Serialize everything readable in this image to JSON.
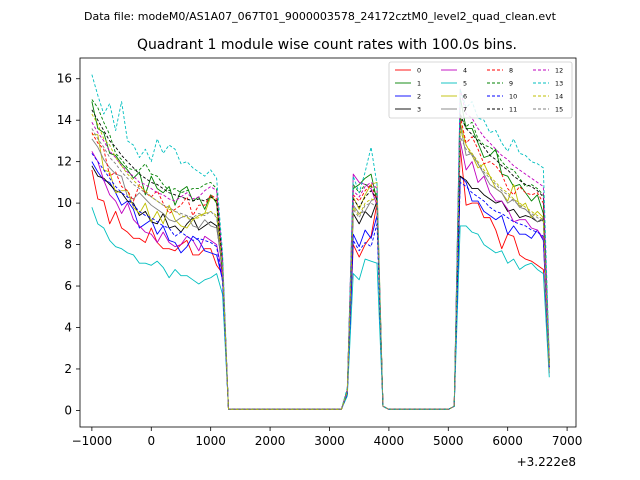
{
  "figure": {
    "suptitle": "Data file: modeM0/AS1A07_067T01_9000003578_24172cztM0_level2_quad_clean.evt",
    "title": "Quadrant 1 module wise count rates with 100.0s bins.",
    "x_offset_label": "+3.222e8"
  },
  "chart_data": {
    "type": "line",
    "title": "Quadrant 1 module wise count rates with 100.0s bins.",
    "xlabel": "",
    "ylabel": "",
    "x_offset": "+3.222e8",
    "xlim": [
      -1200,
      7150
    ],
    "ylim": [
      -0.8,
      17.0
    ],
    "xticks": [
      -1000,
      0,
      1000,
      2000,
      3000,
      4000,
      5000,
      6000,
      7000
    ],
    "xtick_labels": [
      "−1000",
      "0",
      "1000",
      "2000",
      "3000",
      "4000",
      "5000",
      "6000",
      "7000"
    ],
    "yticks": [
      0,
      2,
      4,
      6,
      8,
      10,
      12,
      14,
      16
    ],
    "ytick_labels": [
      "0",
      "2",
      "4",
      "6",
      "8",
      "10",
      "12",
      "14",
      "16"
    ],
    "grid": false,
    "legend_position": "top-right",
    "legend_columns": 4,
    "segments": [
      {
        "start": -1000,
        "count": 22
      },
      {
        "start": 1200,
        "count": 1
      },
      {
        "start": 1300,
        "count": 20
      },
      {
        "start": 3300,
        "count": 6
      },
      {
        "start": 3900,
        "count": 12
      },
      {
        "start": 5100,
        "count": 1
      },
      {
        "start": 5200,
        "count": 16
      }
    ],
    "series": [
      {
        "name": "0",
        "color": "#ff0000",
        "dash": "solid",
        "active1": [
          11.6,
          10.2,
          10.1,
          9.0,
          9.6,
          8.8,
          8.6,
          8.3,
          8.3,
          8.1,
          8.8,
          8.1,
          7.8,
          7.8,
          7.7,
          8.0,
          8.2,
          7.5,
          7.5,
          7.8,
          7.8,
          7.0,
          6.6
        ],
        "active2": [
          0.9,
          8.0,
          7.4,
          8.0,
          8.4,
          10.0,
          0.2
        ],
        "active3": [
          0.2,
          12.7,
          9.9,
          10.0,
          10.0,
          9.3,
          9.3,
          8.7,
          7.8,
          8.5,
          8.4,
          7.5,
          7.3,
          7.2,
          7.0,
          6.8,
          1.8
        ]
      },
      {
        "name": "1",
        "color": "#008000",
        "dash": "solid",
        "active1": [
          14.9,
          13.6,
          13.4,
          12.4,
          12.3,
          11.9,
          11.6,
          11.2,
          11.5,
          10.4,
          11.3,
          10.7,
          10.5,
          10.8,
          9.9,
          10.6,
          10.8,
          10.1,
          10.3,
          9.7,
          10.4,
          10.0,
          6.4
        ],
        "active2": [
          1.0,
          10.7,
          10.9,
          11.2,
          11.4,
          10.1,
          0.2
        ],
        "active3": [
          0.2,
          15.1,
          13.6,
          13.6,
          12.9,
          12.2,
          12.3,
          12.6,
          11.4,
          11.3,
          10.8,
          10.9,
          10.5,
          10.1,
          10.4,
          9.5,
          2.2
        ]
      },
      {
        "name": "2",
        "color": "#0000ff",
        "dash": "solid",
        "active1": [
          12.0,
          11.5,
          11.1,
          11.0,
          10.5,
          9.9,
          10.1,
          9.7,
          8.8,
          9.0,
          9.2,
          8.5,
          8.9,
          8.2,
          8.1,
          7.6,
          7.9,
          8.4,
          8.2,
          7.7,
          7.6,
          7.5,
          6.3
        ],
        "active2": [
          0.8,
          8.5,
          7.9,
          8.7,
          8.3,
          9.4,
          0.2
        ],
        "active3": [
          0.2,
          11.3,
          11.0,
          10.1,
          10.1,
          9.6,
          9.4,
          9.2,
          9.4,
          8.5,
          8.9,
          8.5,
          8.5,
          8.3,
          8.7,
          8.2,
          2.0
        ]
      },
      {
        "name": "3",
        "color": "#000000",
        "dash": "solid",
        "active1": [
          11.8,
          11.3,
          11.2,
          10.9,
          10.6,
          10.5,
          10.1,
          10.0,
          9.4,
          9.6,
          9.1,
          9.0,
          9.5,
          8.8,
          8.9,
          8.6,
          9.0,
          9.3,
          8.7,
          8.9,
          9.1,
          8.9,
          6.8
        ],
        "active2": [
          0.9,
          9.5,
          9.0,
          9.6,
          9.3,
          10.1,
          0.2
        ],
        "active3": [
          0.2,
          11.3,
          11.1,
          10.7,
          10.7,
          10.4,
          10.2,
          10.0,
          10.1,
          9.6,
          9.7,
          9.3,
          9.4,
          9.3,
          9.1,
          9.2,
          2.3
        ]
      },
      {
        "name": "4",
        "color": "#bf00bf",
        "dash": "solid",
        "active1": [
          12.5,
          12.0,
          11.1,
          10.4,
          10.1,
          9.5,
          10.0,
          9.2,
          8.9,
          8.6,
          8.5,
          8.1,
          8.6,
          8.1,
          7.9,
          8.0,
          8.4,
          8.2,
          7.7,
          8.4,
          8.2,
          8.0,
          6.5
        ],
        "active2": [
          0.9,
          11.4,
          11.0,
          10.9,
          10.7,
          9.9,
          0.2
        ],
        "active3": [
          0.2,
          13.0,
          11.6,
          12.0,
          11.0,
          11.3,
          10.5,
          10.1,
          10.1,
          9.7,
          9.1,
          9.2,
          9.2,
          8.8,
          8.7,
          8.3,
          2.1
        ]
      },
      {
        "name": "5",
        "color": "#00bfbf",
        "dash": "solid",
        "active1": [
          9.8,
          9.0,
          8.8,
          8.2,
          7.9,
          7.8,
          7.6,
          7.5,
          7.1,
          7.1,
          7.0,
          7.2,
          6.9,
          6.4,
          6.8,
          6.5,
          6.5,
          6.3,
          6.1,
          6.3,
          6.4,
          6.6,
          5.6
        ],
        "active2": [
          0.7,
          6.6,
          6.3,
          7.3,
          7.2,
          7.1,
          0.2
        ],
        "active3": [
          0.2,
          8.9,
          8.9,
          8.6,
          8.5,
          8.0,
          7.8,
          7.6,
          7.7,
          7.1,
          7.3,
          6.8,
          7.0,
          7.1,
          6.8,
          6.6,
          1.6
        ]
      },
      {
        "name": "6",
        "color": "#bfbf00",
        "dash": "solid",
        "active1": [
          13.3,
          13.3,
          11.6,
          11.5,
          10.5,
          10.6,
          10.6,
          9.8,
          9.5,
          10.0,
          9.1,
          9.6,
          9.0,
          9.9,
          9.2,
          8.9,
          8.8,
          9.2,
          9.4,
          9.5,
          10.3,
          10.1,
          6.9
        ],
        "active2": [
          0.9,
          10.3,
          9.7,
          10.4,
          10.9,
          11.0,
          0.2
        ],
        "active3": [
          0.2,
          13.9,
          12.8,
          12.3,
          11.7,
          11.9,
          11.3,
          10.7,
          10.5,
          10.1,
          10.9,
          9.8,
          10.0,
          9.3,
          9.6,
          9.3,
          2.0
        ]
      },
      {
        "name": "7",
        "color": "#808080",
        "dash": "solid",
        "active1": [
          13.1,
          12.7,
          12.1,
          11.7,
          11.4,
          11.3,
          10.3,
          10.2,
          10.5,
          10.2,
          9.9,
          9.7,
          9.5,
          9.2,
          9.1,
          9.3,
          9.4,
          8.9,
          8.8,
          9.2,
          8.9,
          8.8,
          7.0
        ],
        "active2": [
          0.9,
          9.9,
          9.5,
          9.6,
          10.1,
          10.3,
          0.2
        ],
        "active3": [
          0.2,
          13.8,
          12.3,
          12.4,
          11.9,
          11.4,
          10.9,
          10.7,
          10.5,
          10.0,
          10.2,
          9.8,
          9.7,
          9.4,
          9.1,
          9.3,
          2.1
        ]
      },
      {
        "name": "8",
        "color": "#ff0000",
        "dash": "dashed",
        "active1": [
          13.4,
          12.9,
          12.6,
          11.3,
          11.5,
          10.8,
          10.6,
          10.1,
          10.9,
          10.5,
          10.3,
          10.6,
          10.0,
          9.5,
          9.7,
          9.9,
          10.3,
          9.4,
          9.9,
          9.9,
          10.4,
          10.2,
          7.0
        ],
        "active2": [
          0.9,
          10.4,
          10.1,
          10.6,
          10.9,
          10.1,
          0.2
        ],
        "active3": [
          0.2,
          14.2,
          12.9,
          13.2,
          12.6,
          11.9,
          12.0,
          11.8,
          11.4,
          10.7,
          10.4,
          10.8,
          10.5,
          10.4,
          10.5,
          10.0,
          2.3
        ]
      },
      {
        "name": "9",
        "color": "#008000",
        "dash": "dashed",
        "active1": [
          15.0,
          14.6,
          13.9,
          13.3,
          12.4,
          12.1,
          11.7,
          11.6,
          11.6,
          11.9,
          11.4,
          11.3,
          10.9,
          10.6,
          10.7,
          10.5,
          10.6,
          10.7,
          10.7,
          10.9,
          11.0,
          10.7,
          7.3
        ],
        "active2": [
          1.0,
          10.9,
          10.5,
          10.9,
          10.8,
          10.4,
          0.2
        ],
        "active3": [
          0.2,
          14.1,
          13.7,
          13.9,
          13.1,
          12.8,
          12.7,
          12.5,
          12.0,
          11.7,
          11.6,
          11.2,
          10.8,
          10.9,
          10.7,
          10.4,
          2.4
        ]
      },
      {
        "name": "10",
        "color": "#0000ff",
        "dash": "dashed",
        "active1": [
          12.4,
          12.0,
          11.6,
          11.2,
          10.8,
          10.5,
          10.3,
          9.9,
          9.6,
          9.4,
          9.3,
          9.1,
          8.9,
          8.8,
          8.4,
          8.6,
          8.4,
          8.2,
          8.3,
          8.2,
          8.1,
          7.9,
          6.2
        ],
        "active2": [
          0.8,
          8.2,
          7.7,
          8.1,
          7.9,
          9.0,
          0.2
        ],
        "active3": [
          0.2,
          11.0,
          10.8,
          10.5,
          10.3,
          10.1,
          9.8,
          9.6,
          9.5,
          9.3,
          9.1,
          9.0,
          8.9,
          8.7,
          8.6,
          8.4,
          2.0
        ]
      },
      {
        "name": "11",
        "color": "#000000",
        "dash": "dashed",
        "active1": [
          14.5,
          14.0,
          13.5,
          13.0,
          12.7,
          12.3,
          12.0,
          11.7,
          11.4,
          11.2,
          11.0,
          10.9,
          10.7,
          10.5,
          10.4,
          10.3,
          10.2,
          10.1,
          10.2,
          10.1,
          10.3,
          10.1,
          7.0
        ],
        "active2": [
          0.9,
          10.2,
          9.8,
          10.3,
          10.6,
          10.2,
          0.2
        ],
        "active3": [
          0.2,
          14.3,
          13.6,
          13.3,
          13.0,
          12.7,
          12.3,
          12.1,
          11.8,
          11.6,
          11.3,
          11.1,
          10.9,
          10.8,
          10.6,
          10.3,
          2.3
        ]
      },
      {
        "name": "12",
        "color": "#bf00bf",
        "dash": "dashed",
        "active1": [
          13.9,
          13.4,
          13.0,
          12.5,
          12.2,
          11.8,
          11.5,
          11.3,
          11.0,
          10.9,
          10.7,
          10.5,
          10.4,
          10.2,
          10.1,
          10.3,
          10.5,
          10.2,
          10.3,
          10.6,
          10.8,
          10.6,
          7.3
        ],
        "active2": [
          1.0,
          10.6,
          10.3,
          10.8,
          11.0,
          10.7,
          0.2
        ],
        "active3": [
          0.2,
          15.5,
          14.3,
          14.1,
          13.6,
          13.2,
          12.9,
          12.6,
          12.3,
          12.1,
          11.8,
          11.6,
          11.4,
          11.2,
          11.0,
          10.8,
          2.5
        ]
      },
      {
        "name": "13",
        "color": "#00bfbf",
        "dash": "dashed",
        "active1": [
          16.2,
          15.2,
          14.3,
          14.8,
          13.5,
          14.9,
          13.0,
          12.8,
          12.2,
          12.6,
          12.0,
          13.1,
          12.4,
          12.8,
          12.6,
          11.9,
          12.0,
          11.7,
          11.5,
          11.3,
          11.6,
          11.2,
          7.6
        ],
        "active2": [
          1.1,
          11.3,
          10.5,
          11.5,
          12.7,
          10.9,
          0.2
        ],
        "active3": [
          0.2,
          15.5,
          14.6,
          14.9,
          14.1,
          14.0,
          13.4,
          13.5,
          12.9,
          12.5,
          13.1,
          12.4,
          12.3,
          12.0,
          11.9,
          11.7,
          2.6
        ]
      },
      {
        "name": "14",
        "color": "#bfbf00",
        "dash": "dashed",
        "active1": [
          14.3,
          13.8,
          13.1,
          12.8,
          12.2,
          11.8,
          11.4,
          11.1,
          10.8,
          10.6,
          10.3,
          10.1,
          9.9,
          9.7,
          9.6,
          9.4,
          9.3,
          9.2,
          9.3,
          9.5,
          9.6,
          9.4,
          6.9
        ],
        "active2": [
          0.9,
          9.8,
          9.4,
          10.0,
          10.2,
          10.1,
          0.2
        ],
        "active3": [
          0.2,
          13.5,
          12.8,
          12.4,
          12.0,
          11.6,
          11.3,
          11.0,
          10.7,
          10.5,
          10.2,
          10.0,
          9.8,
          9.6,
          9.4,
          9.2,
          2.2
        ]
      },
      {
        "name": "15",
        "color": "#808080",
        "dash": "dashed",
        "active1": [
          13.6,
          13.1,
          12.7,
          12.2,
          11.9,
          11.5,
          11.2,
          10.9,
          10.7,
          10.5,
          10.3,
          10.1,
          9.9,
          9.8,
          9.6,
          9.5,
          9.4,
          9.3,
          9.5,
          9.4,
          9.6,
          9.3,
          6.8
        ],
        "active2": [
          0.9,
          9.7,
          9.3,
          9.9,
          10.0,
          9.8,
          0.2
        ],
        "active3": [
          0.2,
          13.2,
          12.6,
          12.3,
          11.9,
          11.5,
          11.2,
          10.9,
          10.6,
          10.4,
          10.1,
          9.9,
          9.7,
          9.5,
          9.3,
          9.1,
          2.1
        ]
      }
    ]
  }
}
